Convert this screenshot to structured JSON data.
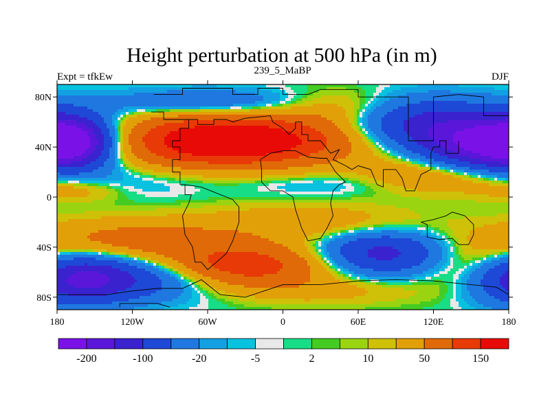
{
  "title": "Height perturbation at 500 hPa (in m)",
  "left_label": "Expt = tfkEw",
  "center_label": "239_5_MaBP",
  "right_label": "DJF",
  "y_ticks": [
    "80N",
    "40N",
    "0",
    "40S",
    "80S"
  ],
  "x_ticks": [
    "180",
    "120W",
    "60W",
    "0",
    "60E",
    "120E",
    "180"
  ],
  "colorbar_labels": [
    "-200",
    "-100",
    "-20",
    "-5",
    "2",
    "10",
    "50",
    "150"
  ],
  "colorbar_colors": [
    "#7a12e8",
    "#5a17d9",
    "#3a22cf",
    "#1e48d6",
    "#1e78e0",
    "#13a0e2",
    "#08c2df",
    "#e8e8e8",
    "#17dd86",
    "#44cc22",
    "#9ad411",
    "#cfc108",
    "#e2a008",
    "#e06a08",
    "#e83a06",
    "#e80a06"
  ],
  "field": {
    "base": "#e8e8e8",
    "lon_range": [
      -180,
      180
    ],
    "lat_range": [
      -90,
      90
    ],
    "centers": [
      {
        "lon": -20,
        "lat": 45,
        "amp": 175,
        "sx": 55,
        "sy": 14
      },
      {
        "lon": -80,
        "lat": 45,
        "amp": 90,
        "sx": 45,
        "sy": 16
      },
      {
        "lon": 50,
        "lat": 72,
        "amp": 40,
        "sx": 40,
        "sy": 10
      },
      {
        "lon": -165,
        "lat": 5,
        "amp": 30,
        "sx": 25,
        "sy": 6
      },
      {
        "lon": -168,
        "lat": 45,
        "amp": -190,
        "sx": 22,
        "sy": 14
      },
      {
        "lon": 160,
        "lat": 42,
        "amp": -190,
        "sx": 35,
        "sy": 14
      },
      {
        "lon": 110,
        "lat": 60,
        "amp": -110,
        "sx": 40,
        "sy": 14
      },
      {
        "lon": -60,
        "lat": 75,
        "amp": -60,
        "sx": 60,
        "sy": 8
      },
      {
        "lon": -120,
        "lat": 15,
        "amp": -20,
        "sx": 60,
        "sy": 10
      },
      {
        "lon": 30,
        "lat": 10,
        "amp": -15,
        "sx": 40,
        "sy": 6
      },
      {
        "lon": 100,
        "lat": 20,
        "amp": 35,
        "sx": 30,
        "sy": 10
      },
      {
        "lon": 150,
        "lat": 15,
        "amp": 40,
        "sx": 35,
        "sy": 10
      },
      {
        "lon": -120,
        "lat": -35,
        "amp": 70,
        "sx": 60,
        "sy": 12
      },
      {
        "lon": 20,
        "lat": -20,
        "amp": 40,
        "sx": 60,
        "sy": 10
      },
      {
        "lon": 150,
        "lat": -55,
        "amp": 40,
        "sx": 30,
        "sy": 14
      },
      {
        "lon": -30,
        "lat": -55,
        "amp": 130,
        "sx": 45,
        "sy": 12
      },
      {
        "lon": 80,
        "lat": -45,
        "amp": -120,
        "sx": 35,
        "sy": 12
      },
      {
        "lon": -120,
        "lat": -65,
        "amp": -80,
        "sx": 45,
        "sy": 12
      },
      {
        "lon": -165,
        "lat": -65,
        "amp": -130,
        "sx": 30,
        "sy": 14
      },
      {
        "lon": 40,
        "lat": -75,
        "amp": 25,
        "sx": 50,
        "sy": 8
      }
    ]
  },
  "outlines": [
    [
      [
        -103,
        82
      ],
      [
        -80,
        82
      ],
      [
        -80,
        87
      ],
      [
        -40,
        87
      ],
      [
        -40,
        82
      ],
      [
        -20,
        82
      ],
      [
        -20,
        87
      ],
      [
        0,
        87
      ],
      [
        0,
        82
      ],
      [
        20,
        82
      ],
      [
        30,
        86
      ],
      [
        60,
        86
      ],
      [
        60,
        80
      ],
      [
        100,
        80
      ],
      [
        100,
        76
      ],
      [
        100,
        45
      ],
      [
        120,
        45
      ],
      [
        120,
        80
      ],
      [
        140,
        82
      ],
      [
        160,
        80
      ],
      [
        160,
        65
      ],
      [
        180,
        65
      ],
      [
        180,
        70
      ]
    ],
    [
      [
        -105,
        68
      ],
      [
        -95,
        68
      ],
      [
        -95,
        62
      ],
      [
        -75,
        62
      ],
      [
        -75,
        55
      ],
      [
        -82,
        55
      ],
      [
        -82,
        45
      ],
      [
        -88,
        45
      ],
      [
        -88,
        40
      ],
      [
        -82,
        40
      ],
      [
        -82,
        30
      ],
      [
        -88,
        30
      ],
      [
        -88,
        20
      ],
      [
        -82,
        20
      ],
      [
        -82,
        10
      ],
      [
        -78,
        10
      ],
      [
        -78,
        2
      ],
      [
        -73,
        2
      ],
      [
        -75,
        -5
      ],
      [
        -80,
        -15
      ],
      [
        -78,
        -30
      ],
      [
        -72,
        -40
      ],
      [
        -70,
        -52
      ],
      [
        -65,
        -52
      ],
      [
        -60,
        -58
      ],
      [
        -53,
        -52
      ],
      [
        -45,
        -45
      ],
      [
        -40,
        -35
      ],
      [
        -35,
        -20
      ],
      [
        -35,
        -8
      ],
      [
        -40,
        -2
      ],
      [
        -55,
        4
      ],
      [
        -65,
        8
      ],
      [
        -78,
        10
      ]
    ],
    [
      [
        -75,
        62
      ],
      [
        -68,
        62
      ],
      [
        -68,
        58
      ],
      [
        -55,
        58
      ],
      [
        -55,
        62
      ],
      [
        -45,
        62
      ],
      [
        -40,
        60
      ],
      [
        -30,
        63
      ],
      [
        -20,
        64
      ],
      [
        -10,
        65
      ],
      [
        -8,
        60
      ],
      [
        0,
        55
      ],
      [
        5,
        50
      ],
      [
        10,
        55
      ],
      [
        10,
        60
      ],
      [
        15,
        60
      ],
      [
        15,
        50
      ],
      [
        20,
        50
      ],
      [
        20,
        45
      ],
      [
        30,
        45
      ],
      [
        38,
        35
      ],
      [
        45,
        38
      ],
      [
        40,
        30
      ],
      [
        50,
        25
      ],
      [
        55,
        22
      ],
      [
        60,
        25
      ],
      [
        70,
        22
      ],
      [
        75,
        10
      ],
      [
        80,
        8
      ],
      [
        80,
        22
      ],
      [
        90,
        22
      ],
      [
        95,
        15
      ],
      [
        98,
        5
      ],
      [
        105,
        5
      ],
      [
        110,
        18
      ],
      [
        118,
        22
      ],
      [
        118,
        35
      ],
      [
        120,
        40
      ],
      [
        125,
        40
      ],
      [
        125,
        45
      ],
      [
        130,
        45
      ],
      [
        130,
        35
      ],
      [
        140,
        35
      ],
      [
        140,
        45
      ]
    ],
    [
      [
        -18,
        30
      ],
      [
        -10,
        35
      ],
      [
        0,
        37
      ],
      [
        10,
        37
      ],
      [
        20,
        32
      ],
      [
        30,
        31
      ],
      [
        35,
        31
      ],
      [
        42,
        20
      ],
      [
        50,
        12
      ],
      [
        45,
        10
      ],
      [
        40,
        5
      ],
      [
        38,
        -5
      ],
      [
        40,
        -15
      ],
      [
        35,
        -25
      ],
      [
        30,
        -33
      ],
      [
        20,
        -35
      ],
      [
        15,
        -25
      ],
      [
        10,
        -10
      ],
      [
        8,
        0
      ],
      [
        0,
        5
      ],
      [
        -10,
        5
      ],
      [
        -17,
        12
      ],
      [
        -17,
        22
      ],
      [
        -18,
        30
      ]
    ],
    [
      [
        110,
        -20
      ],
      [
        115,
        -22
      ],
      [
        115,
        -32
      ],
      [
        125,
        -34
      ],
      [
        135,
        -33
      ],
      [
        140,
        -38
      ],
      [
        148,
        -38
      ],
      [
        152,
        -30
      ],
      [
        152,
        -22
      ],
      [
        145,
        -15
      ],
      [
        135,
        -12
      ],
      [
        130,
        -15
      ],
      [
        120,
        -18
      ],
      [
        110,
        -20
      ]
    ],
    [
      [
        -180,
        -78
      ],
      [
        -140,
        -78
      ],
      [
        -120,
        -75
      ],
      [
        -100,
        -73
      ],
      [
        -80,
        -73
      ],
      [
        -65,
        -66
      ],
      [
        -60,
        -70
      ],
      [
        -50,
        -78
      ],
      [
        -30,
        -80
      ],
      [
        0,
        -70
      ],
      [
        30,
        -70
      ],
      [
        60,
        -67
      ],
      [
        90,
        -66
      ],
      [
        120,
        -67
      ],
      [
        150,
        -70
      ],
      [
        170,
        -72
      ],
      [
        180,
        -78
      ]
    ],
    [
      [
        -130,
        -88
      ],
      [
        -130,
        -85
      ],
      [
        -100,
        -85
      ],
      [
        -90,
        -88
      ]
    ]
  ]
}
